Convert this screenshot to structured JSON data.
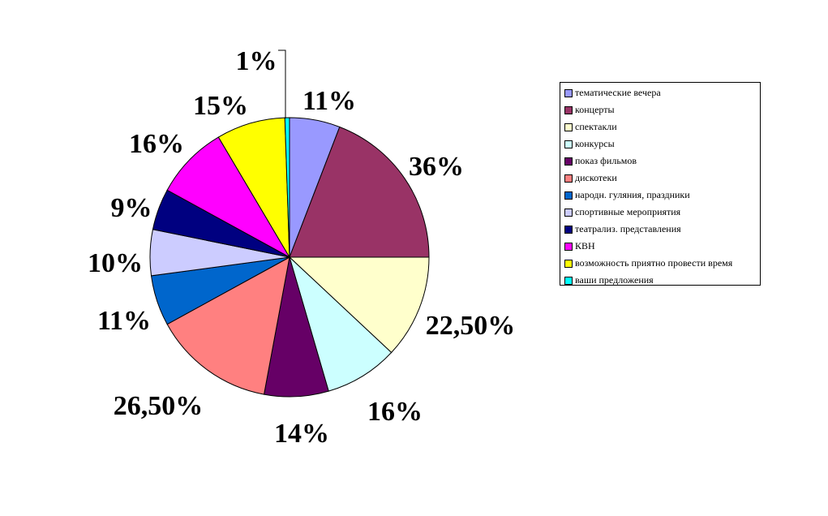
{
  "chart_data": {
    "type": "pie",
    "title": "",
    "legend_position": "right",
    "categories": [
      "тематические вечера",
      "концерты",
      "спектакли",
      "конкурсы",
      "показ фильмов",
      "дискотеки",
      "народн. гуляния, праздники",
      "спортивные мероприятия",
      "театрализ. представления",
      "КВН",
      "возможность приятно провести время",
      "ваши предложения"
    ],
    "values": [
      11,
      36,
      22.5,
      16,
      14,
      26.5,
      11,
      10,
      9,
      16,
      15,
      1
    ],
    "labels": [
      "11%",
      "36%",
      "22,50%",
      "16%",
      "14%",
      "26,50%",
      "11%",
      "10%",
      "9%",
      "16%",
      "15%",
      "1%"
    ],
    "colors": [
      "#9999FF",
      "#993366",
      "#FFFFCC",
      "#CCFFFF",
      "#660066",
      "#FF8080",
      "#0066CC",
      "#CCCCFF",
      "#000080",
      "#FF00FF",
      "#FFFF00",
      "#00FFFF"
    ]
  }
}
